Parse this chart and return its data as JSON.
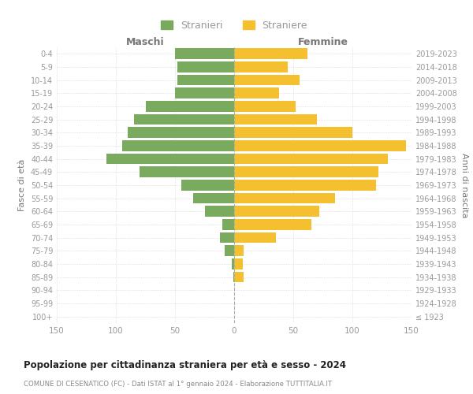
{
  "age_groups": [
    "0-4",
    "5-9",
    "10-14",
    "15-19",
    "20-24",
    "25-29",
    "30-34",
    "35-39",
    "40-44",
    "45-49",
    "50-54",
    "55-59",
    "60-64",
    "65-69",
    "70-74",
    "75-79",
    "80-84",
    "85-89",
    "90-94",
    "95-99",
    "100+"
  ],
  "birth_years": [
    "2019-2023",
    "2014-2018",
    "2009-2013",
    "2004-2008",
    "1999-2003",
    "1994-1998",
    "1989-1993",
    "1984-1988",
    "1979-1983",
    "1974-1978",
    "1969-1973",
    "1964-1968",
    "1959-1963",
    "1954-1958",
    "1949-1953",
    "1944-1948",
    "1939-1943",
    "1934-1938",
    "1929-1933",
    "1924-1928",
    "≤ 1923"
  ],
  "males": [
    50,
    48,
    48,
    50,
    75,
    85,
    90,
    95,
    108,
    80,
    45,
    35,
    25,
    10,
    12,
    8,
    2,
    1,
    0,
    0,
    0
  ],
  "females": [
    62,
    45,
    55,
    38,
    52,
    70,
    100,
    145,
    130,
    122,
    120,
    85,
    72,
    65,
    35,
    8,
    7,
    8,
    0,
    0,
    0
  ],
  "male_color": "#7aaa5e",
  "female_color": "#f5c030",
  "xlim": 150,
  "title": "Popolazione per cittadinanza straniera per età e sesso - 2024",
  "subtitle": "COMUNE DI CESENATICO (FC) - Dati ISTAT al 1° gennaio 2024 - Elaborazione TUTTITALIA.IT",
  "xlabel_left": "Maschi",
  "xlabel_right": "Femmine",
  "ylabel_left": "Fasce di età",
  "ylabel_right": "Anni di nascita",
  "legend_stranieri": "Stranieri",
  "legend_straniere": "Straniere",
  "bg_color": "#ffffff",
  "grid_color": "#cccccc",
  "tick_color": "#999999",
  "label_color": "#777777",
  "title_color": "#222222",
  "subtitle_color": "#888888"
}
